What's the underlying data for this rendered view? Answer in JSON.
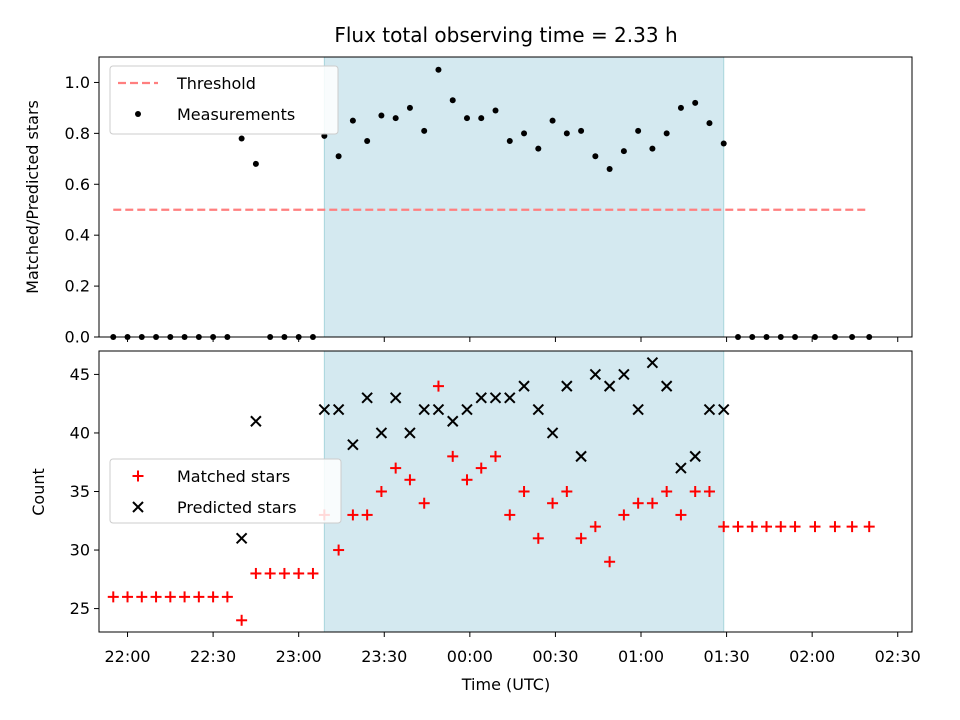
{
  "chart_data": {
    "type": "scatter",
    "title": "Flux total observing time = 2.33 h",
    "xlabel": "Time (UTC)",
    "x_ticks": [
      "22:00",
      "22:30",
      "23:00",
      "23:30",
      "00:00",
      "00:30",
      "01:00",
      "01:30",
      "02:00",
      "02:30"
    ],
    "x_range": [
      "21:50",
      "02:35"
    ],
    "shaded_region": {
      "start": "23:09",
      "end": "01:29",
      "color": "#d4e9f0"
    },
    "panels": [
      {
        "ylabel": "Matched/Predicted stars",
        "ylim": [
          0,
          1.1
        ],
        "y_ticks": [
          "0.0",
          "0.2",
          "0.4",
          "0.6",
          "0.8",
          "1.0"
        ],
        "legend_position": "upper-left",
        "series": [
          {
            "name": "Threshold",
            "style": "dashed-line",
            "color": "#ff7f7f",
            "x": [
              "21:55",
              "02:20"
            ],
            "y": [
              0.5,
              0.5
            ]
          },
          {
            "name": "Measurements",
            "style": "dot",
            "color": "#000000",
            "x": [
              "21:55",
              "22:00",
              "22:05",
              "22:10",
              "22:15",
              "22:20",
              "22:25",
              "22:30",
              "22:35",
              "22:40",
              "22:45",
              "22:50",
              "22:55",
              "23:00",
              "23:05",
              "23:09",
              "23:14",
              "23:19",
              "23:24",
              "23:29",
              "23:34",
              "23:39",
              "23:44",
              "23:49",
              "23:54",
              "23:59",
              "00:04",
              "00:09",
              "00:14",
              "00:19",
              "00:24",
              "00:29",
              "00:34",
              "00:39",
              "00:44",
              "00:49",
              "00:54",
              "00:59",
              "01:04",
              "01:09",
              "01:14",
              "01:19",
              "01:24",
              "01:29",
              "01:34",
              "01:39",
              "01:44",
              "01:49",
              "01:54",
              "02:01",
              "02:08",
              "02:14",
              "02:20"
            ],
            "y": [
              0,
              0,
              0,
              0,
              0,
              0,
              0,
              0,
              0,
              0.78,
              0.68,
              0,
              0,
              0,
              0,
              0.79,
              0.71,
              0.85,
              0.77,
              0.87,
              0.86,
              0.9,
              0.81,
              1.05,
              0.93,
              0.86,
              0.86,
              0.89,
              0.77,
              0.8,
              0.74,
              0.85,
              0.8,
              0.81,
              0.71,
              0.66,
              0.73,
              0.81,
              0.74,
              0.8,
              0.9,
              0.92,
              0.84,
              0.76,
              0,
              0,
              0,
              0,
              0,
              0,
              0,
              0,
              0
            ]
          }
        ]
      },
      {
        "ylabel": "Count",
        "ylim": [
          23,
          47
        ],
        "y_ticks": [
          "25",
          "30",
          "35",
          "40",
          "45"
        ],
        "legend_position": "center-left",
        "series": [
          {
            "name": "Matched stars",
            "style": "plus",
            "color": "#ff0000",
            "x": [
              "21:55",
              "22:00",
              "22:05",
              "22:10",
              "22:15",
              "22:20",
              "22:25",
              "22:30",
              "22:35",
              "22:40",
              "22:45",
              "22:50",
              "22:55",
              "23:00",
              "23:05",
              "23:09",
              "23:14",
              "23:19",
              "23:24",
              "23:29",
              "23:34",
              "23:39",
              "23:44",
              "23:49",
              "23:54",
              "23:59",
              "00:04",
              "00:09",
              "00:14",
              "00:19",
              "00:24",
              "00:29",
              "00:34",
              "00:39",
              "00:44",
              "00:49",
              "00:54",
              "00:59",
              "01:04",
              "01:09",
              "01:14",
              "01:19",
              "01:24",
              "01:29",
              "01:34",
              "01:39",
              "01:44",
              "01:49",
              "01:54",
              "02:01",
              "02:08",
              "02:14",
              "02:20"
            ],
            "y": [
              26,
              26,
              26,
              26,
              26,
              26,
              26,
              26,
              26,
              24,
              28,
              28,
              28,
              28,
              28,
              33,
              30,
              33,
              33,
              35,
              37,
              36,
              34,
              44,
              38,
              36,
              37,
              38,
              33,
              35,
              31,
              34,
              35,
              31,
              32,
              29,
              33,
              34,
              34,
              35,
              33,
              35,
              35,
              32,
              32,
              32,
              32,
              32,
              32,
              32,
              32,
              32,
              32
            ]
          },
          {
            "name": "Predicted stars",
            "style": "x",
            "color": "#000000",
            "x": [
              "22:40",
              "22:45",
              "23:09",
              "23:14",
              "23:19",
              "23:24",
              "23:29",
              "23:34",
              "23:39",
              "23:44",
              "23:49",
              "23:54",
              "23:59",
              "00:04",
              "00:09",
              "00:14",
              "00:19",
              "00:24",
              "00:29",
              "00:34",
              "00:39",
              "00:44",
              "00:49",
              "00:54",
              "00:59",
              "01:04",
              "01:09",
              "01:14",
              "01:19",
              "01:24",
              "01:29"
            ],
            "y": [
              31,
              41,
              42,
              42,
              39,
              43,
              40,
              43,
              40,
              42,
              42,
              41,
              42,
              43,
              43,
              43,
              44,
              42,
              40,
              44,
              38,
              45,
              44,
              45,
              42,
              46,
              44,
              37,
              38,
              42,
              42
            ]
          }
        ]
      }
    ]
  }
}
